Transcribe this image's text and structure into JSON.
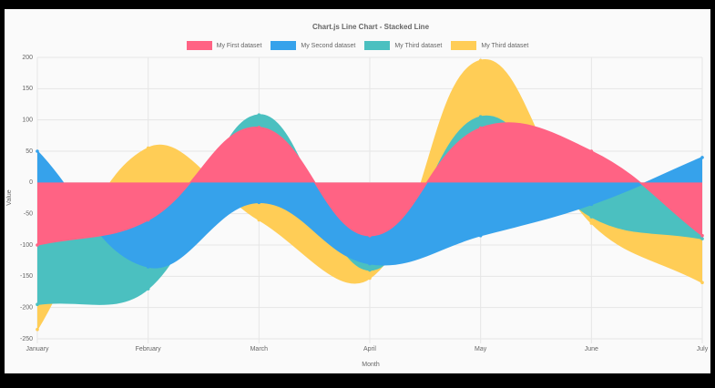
{
  "chart_data": {
    "type": "stacked-line",
    "title": "Chart.js Line Chart - Stacked Line",
    "x_label": "Month",
    "y_label": "Value",
    "categories": [
      "January",
      "February",
      "March",
      "April",
      "May",
      "June",
      "July"
    ],
    "series": [
      {
        "name": "My First dataset",
        "color": "#ff6384",
        "values": [
          -100,
          -60,
          88,
          -85,
          87,
          50,
          -85
        ]
      },
      {
        "name": "My Second dataset",
        "color": "#36a2eb",
        "values": [
          50,
          -75,
          -32,
          -45,
          -85,
          -35,
          40
        ]
      },
      {
        "name": "My Third dataset",
        "color": "#4bc0c0",
        "values": [
          -95,
          -35,
          20,
          -10,
          18,
          -20,
          -5
        ]
      },
      {
        "name": "My Third dataset",
        "color": "#ffcd56",
        "values": [
          -40,
          55,
          -28,
          -13,
          90,
          -10,
          -70
        ]
      }
    ],
    "ylim": [
      -250,
      200
    ],
    "yticks": [
      200,
      150,
      100,
      50,
      0,
      -50,
      -100,
      -150,
      -200,
      -250
    ],
    "grid": true
  }
}
